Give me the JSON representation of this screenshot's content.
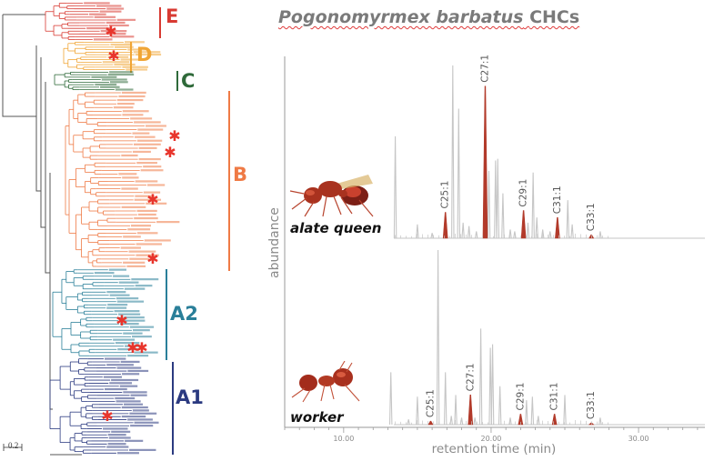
{
  "title_species": "Pogonomyrmex barbatus",
  "title_suffix": "CHCs",
  "colors": {
    "clade_E": "#d83a32",
    "clade_D": "#f0a535",
    "clade_C": "#2f6a3a",
    "clade_B": "#ef7a45",
    "clade_A2": "#2a7f99",
    "clade_A1": "#2b3a80",
    "trace": "#c6c6c6",
    "unsaturated": "#b23a2a",
    "asterisk": "#e8352c"
  },
  "tree": {
    "clades": [
      {
        "label": "E",
        "color_key": "clade_E"
      },
      {
        "label": "D",
        "color_key": "clade_D"
      },
      {
        "label": "C",
        "color_key": "clade_C"
      },
      {
        "label": "B",
        "color_key": "clade_B"
      },
      {
        "label": "A2",
        "color_key": "clade_A2"
      },
      {
        "label": "A1",
        "color_key": "clade_A1"
      }
    ],
    "scale_bar_label": "0.2"
  },
  "chart_data": {
    "type": "line",
    "title": "Pogonomyrmex barbatus CHCs",
    "xlabel": "retention time (min)",
    "ylabel": "abundance",
    "xlim": [
      6.0,
      34.5
    ],
    "xticks": [
      10,
      20,
      30
    ],
    "xtick_labels": [
      "10.00",
      "20.00",
      "30.00"
    ],
    "grid": false,
    "panels": [
      {
        "name": "alate queen",
        "peaks": [
          {
            "t": 13.5,
            "rel": 0.59
          },
          {
            "t": 15.0,
            "rel": 0.08
          },
          {
            "t": 16.0,
            "rel": 0.03
          },
          {
            "t": 16.9,
            "rel": 0.15,
            "label": "C25:1",
            "unsaturated": true
          },
          {
            "t": 17.4,
            "rel": 1.0
          },
          {
            "t": 17.8,
            "rel": 0.75
          },
          {
            "t": 18.1,
            "rel": 0.09
          },
          {
            "t": 18.5,
            "rel": 0.07
          },
          {
            "t": 19.0,
            "rel": 0.04
          },
          {
            "t": 19.6,
            "rel": 0.88,
            "label": "C27:1",
            "unsaturated": true
          },
          {
            "t": 19.85,
            "rel": 0.39
          },
          {
            "t": 20.3,
            "rel": 0.45
          },
          {
            "t": 20.45,
            "rel": 0.46
          },
          {
            "t": 20.8,
            "rel": 0.26
          },
          {
            "t": 21.3,
            "rel": 0.05
          },
          {
            "t": 21.6,
            "rel": 0.04
          },
          {
            "t": 22.2,
            "rel": 0.16,
            "label": "C29:1",
            "unsaturated": true
          },
          {
            "t": 22.5,
            "rel": 0.09
          },
          {
            "t": 22.85,
            "rel": 0.38
          },
          {
            "t": 23.1,
            "rel": 0.12
          },
          {
            "t": 23.5,
            "rel": 0.05
          },
          {
            "t": 24.0,
            "rel": 0.04
          },
          {
            "t": 24.5,
            "rel": 0.12,
            "label": "C31:1",
            "unsaturated": true
          },
          {
            "t": 25.2,
            "rel": 0.22
          },
          {
            "t": 25.5,
            "rel": 0.08
          },
          {
            "t": 26.8,
            "rel": 0.02,
            "label": "C33:1",
            "unsaturated": true
          },
          {
            "t": 27.4,
            "rel": 0.04
          }
        ]
      },
      {
        "name": "worker",
        "peaks": [
          {
            "t": 13.2,
            "rel": 0.3
          },
          {
            "t": 14.4,
            "rel": 0.03
          },
          {
            "t": 15.0,
            "rel": 0.16
          },
          {
            "t": 15.9,
            "rel": 0.02,
            "label": "C25:1",
            "unsaturated": true
          },
          {
            "t": 16.4,
            "rel": 1.0
          },
          {
            "t": 16.9,
            "rel": 0.3
          },
          {
            "t": 17.3,
            "rel": 0.05
          },
          {
            "t": 17.6,
            "rel": 0.17
          },
          {
            "t": 18.0,
            "rel": 0.04
          },
          {
            "t": 18.6,
            "rel": 0.17,
            "label": "C27:1",
            "unsaturated": true
          },
          {
            "t": 18.9,
            "rel": 0.04
          },
          {
            "t": 19.3,
            "rel": 0.55
          },
          {
            "t": 19.95,
            "rel": 0.44
          },
          {
            "t": 20.1,
            "rel": 0.46
          },
          {
            "t": 20.6,
            "rel": 0.22
          },
          {
            "t": 21.3,
            "rel": 0.04
          },
          {
            "t": 22.0,
            "rel": 0.06,
            "label": "C29:1",
            "unsaturated": true
          },
          {
            "t": 22.4,
            "rel": 0.14
          },
          {
            "t": 22.8,
            "rel": 0.16
          },
          {
            "t": 23.2,
            "rel": 0.05
          },
          {
            "t": 24.3,
            "rel": 0.06,
            "label": "C31:1",
            "unsaturated": true
          },
          {
            "t": 25.0,
            "rel": 0.17
          },
          {
            "t": 26.8,
            "rel": 0.01,
            "label": "C33:1",
            "unsaturated": true
          },
          {
            "t": 27.4,
            "rel": 0.04
          }
        ]
      }
    ]
  }
}
